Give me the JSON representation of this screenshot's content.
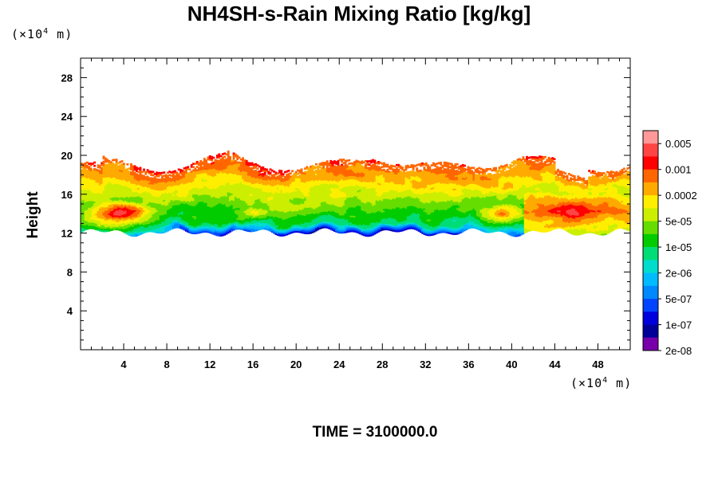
{
  "chart_data": {
    "type": "heatmap",
    "title": "NH4SH-s-Rain Mixing Ratio [kg/kg]",
    "ylabel": "Height",
    "x_unit_prefix": "(×10",
    "x_unit_exp": "4",
    "x_unit_suffix": " m)",
    "y_unit_prefix": "(×10",
    "y_unit_exp": "4",
    "y_unit_suffix": " m)",
    "xlim": [
      0,
      51
    ],
    "ylim": [
      0,
      30
    ],
    "x_ticks": [
      "4",
      "8",
      "12",
      "16",
      "20",
      "24",
      "28",
      "32",
      "36",
      "40",
      "44",
      "48"
    ],
    "x_tick_values": [
      4,
      8,
      12,
      16,
      20,
      24,
      28,
      32,
      36,
      40,
      44,
      48
    ],
    "y_ticks": [
      "4",
      "8",
      "12",
      "16",
      "20",
      "24",
      "28"
    ],
    "y_tick_values": [
      4,
      8,
      12,
      16,
      20,
      24,
      28
    ],
    "colorbar": {
      "labels": [
        "0.005",
        "0.001",
        "0.0002",
        "5e-05",
        "1e-05",
        "2e-06",
        "5e-07",
        "1e-07",
        "2e-08"
      ],
      "colors": [
        "#ff9999",
        "#ff4444",
        "#ff0000",
        "#ff6600",
        "#ffaa00",
        "#ffee00",
        "#ccee00",
        "#66dd00",
        "#00cc00",
        "#00dd77",
        "#00ddcc",
        "#00bbff",
        "#0088ff",
        "#0044ff",
        "#0000dd",
        "#000099",
        "#7700aa"
      ]
    },
    "field_description": {
      "layer_bottom": 12.3,
      "layer_top": 19.5,
      "maxima": [
        {
          "x": 3.5,
          "y": 14.0,
          "level": "0.005"
        },
        {
          "x": 16.0,
          "y": 14.0,
          "level": "0.0002"
        },
        {
          "x": 39.0,
          "y": 14.0,
          "level": "0.001"
        },
        {
          "x": 45.5,
          "y": 14.0,
          "level": "0.005"
        }
      ]
    }
  },
  "footer": {
    "time_label": "TIME = 3100000.0"
  }
}
